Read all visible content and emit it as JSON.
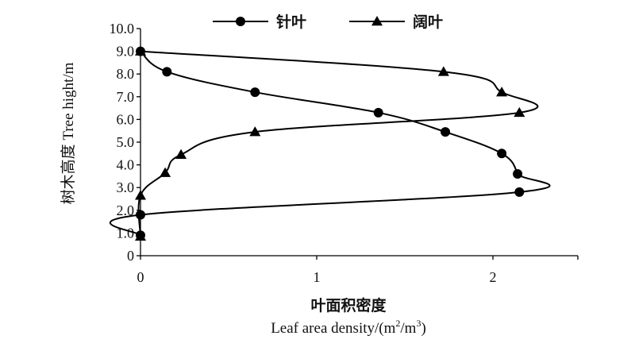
{
  "chart_data": {
    "type": "line",
    "title": "",
    "xlabel_cn": "叶面积密度",
    "xlabel_en": "Leaf area density/(m",
    "xlabel_sup1": "2",
    "xlabel_mid": "/m",
    "xlabel_sup2": "3",
    "xlabel_end": ")",
    "ylabel": "树木高度  Tree hight/m",
    "xlim": [
      0,
      2.5
    ],
    "ylim": [
      0,
      10
    ],
    "xticks": [
      0,
      1,
      2
    ],
    "xtick_labels": [
      "0",
      "1",
      "2"
    ],
    "yticks": [
      0,
      1,
      2,
      3,
      4,
      5,
      6,
      7,
      8,
      9,
      10
    ],
    "ytick_labels": [
      "0",
      "1.0",
      "2.0",
      "3.0",
      "4.0",
      "5.0",
      "6.0",
      "7.0",
      "8.0",
      "9.0",
      "10.0"
    ],
    "grid": false,
    "legend_position": "top",
    "series": [
      {
        "name": "针叶",
        "marker": "circle",
        "x": [
          0,
          0.15,
          0.65,
          1.35,
          1.73,
          2.05,
          2.14,
          2.15,
          0,
          0
        ],
        "y": [
          9.0,
          8.1,
          7.2,
          6.3,
          5.45,
          4.5,
          3.6,
          2.8,
          1.8,
          0.9
        ]
      },
      {
        "name": "阔叶",
        "marker": "triangle",
        "x": [
          0,
          1.72,
          2.05,
          2.15,
          0.65,
          0.23,
          0.14,
          0,
          0
        ],
        "y": [
          9.0,
          8.1,
          7.2,
          6.3,
          5.45,
          4.45,
          3.65,
          2.65,
          0.85
        ]
      }
    ]
  }
}
